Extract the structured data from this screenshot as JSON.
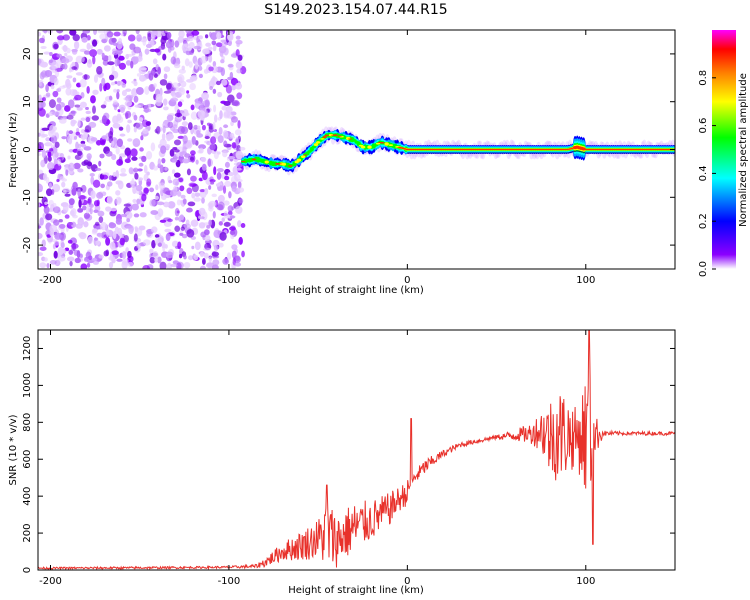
{
  "figure_title": "S149.2023.154.07.44.R15",
  "chart_data": [
    {
      "type": "heatmap",
      "title": "",
      "xlabel": "Height of straight line (km)",
      "ylabel": "Frequency (Hz)",
      "xlim": [
        -207,
        150
      ],
      "ylim": [
        -25,
        25
      ],
      "x_ticks": [
        -200,
        -100,
        0,
        100
      ],
      "y_ticks": [
        -20,
        -10,
        0,
        10,
        20
      ],
      "grid": false,
      "colorbar": {
        "label": "Normalized spectral amplitude",
        "range": [
          0,
          1
        ],
        "ticks": [
          0.0,
          0.2,
          0.4,
          0.6,
          0.8
        ],
        "colormap": [
          "#ffffff",
          "#8b00ff",
          "#0000ff",
          "#00ffff",
          "#00ff00",
          "#ffff00",
          "#ff8000",
          "#ff0000",
          "#ff00ff"
        ]
      },
      "noise_region_x": [
        -207,
        -92
      ],
      "signal_track": {
        "x": [
          -92,
          -85,
          -80,
          -75,
          -70,
          -65,
          -60,
          -55,
          -50,
          -45,
          -40,
          -35,
          -30,
          -25,
          -20,
          -15,
          -10,
          -5,
          0,
          10,
          20,
          40,
          60,
          80,
          90,
          95,
          100,
          120,
          150
        ],
        "freq": [
          -2.5,
          -2,
          -2.5,
          -3,
          -3,
          -3.5,
          -2,
          -0.5,
          1.5,
          3,
          3,
          2.5,
          2,
          0.5,
          0.5,
          1.5,
          1,
          0.5,
          0,
          0,
          0,
          0,
          0,
          0,
          0,
          0.5,
          0,
          0,
          0
        ]
      }
    },
    {
      "type": "line",
      "title": "",
      "xlabel": "Height of straight line (km)",
      "ylabel": "SNR (10 * v/v)",
      "xlim": [
        -207,
        150
      ],
      "ylim": [
        0,
        1300
      ],
      "x_ticks": [
        -200,
        -100,
        0,
        100
      ],
      "y_ticks": [
        0,
        200,
        400,
        600,
        800,
        1000,
        1200
      ],
      "grid": false,
      "line_color": "#e8312b",
      "series": [
        {
          "x": [
            -207,
            -150,
            -100,
            -85,
            -80,
            -70,
            -60,
            -50,
            -45,
            -40,
            -30,
            -20,
            -10,
            -5,
            0,
            2,
            5,
            10,
            20,
            30,
            40,
            50,
            60,
            70,
            75,
            80,
            85,
            90,
            95,
            100,
            102,
            105,
            110,
            120,
            130,
            140,
            150
          ],
          "y": [
            10,
            12,
            15,
            20,
            40,
            100,
            130,
            170,
            200,
            160,
            230,
            270,
            330,
            380,
            420,
            470,
            510,
            560,
            630,
            680,
            700,
            720,
            730,
            740,
            760,
            720,
            740,
            730,
            720,
            730,
            700,
            730,
            740,
            740,
            740,
            740,
            740
          ],
          "amp": [
            5,
            6,
            6,
            10,
            25,
            50,
            80,
            110,
            200,
            150,
            140,
            110,
            90,
            70,
            70,
            30,
            40,
            40,
            20,
            15,
            12,
            12,
            30,
            60,
            120,
            220,
            270,
            220,
            150,
            350,
            400,
            120,
            15,
            10,
            10,
            10,
            10
          ]
        }
      ],
      "spikes": [
        {
          "x": -45,
          "y": 460
        },
        {
          "x": 2,
          "y": 820
        },
        {
          "x": 102,
          "y": 1300
        },
        {
          "x": 104,
          "y": 140
        }
      ]
    }
  ]
}
